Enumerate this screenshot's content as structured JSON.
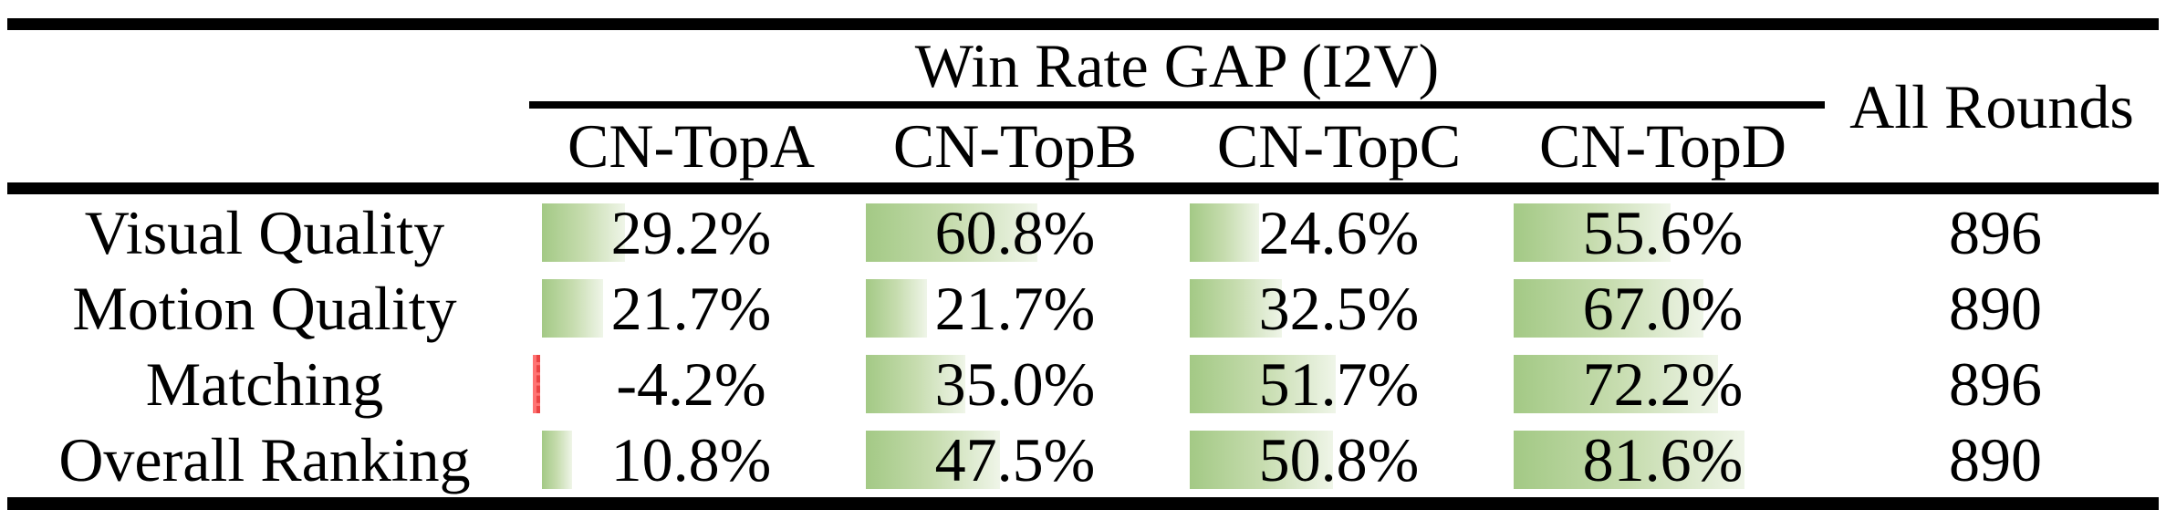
{
  "table": {
    "group_header": "Win Rate GAP (I2V)",
    "all_rounds_header": "All Rounds",
    "metric_columns": [
      "CN-TopA",
      "CN-TopB",
      "CN-TopC",
      "CN-TopD"
    ],
    "rows": [
      {
        "label": "Visual Quality",
        "cells": [
          {
            "value": 29.2,
            "text": "29.2%"
          },
          {
            "value": 60.8,
            "text": "60.8%"
          },
          {
            "value": 24.6,
            "text": "24.6%"
          },
          {
            "value": 55.6,
            "text": "55.6%"
          }
        ],
        "all_rounds": "896"
      },
      {
        "label": "Motion Quality",
        "cells": [
          {
            "value": 21.7,
            "text": "21.7%"
          },
          {
            "value": 21.7,
            "text": "21.7%"
          },
          {
            "value": 32.5,
            "text": "32.5%"
          },
          {
            "value": 67.0,
            "text": "67.0%"
          }
        ],
        "all_rounds": "890"
      },
      {
        "label": "Matching",
        "cells": [
          {
            "value": -4.2,
            "text": "-4.2%"
          },
          {
            "value": 35.0,
            "text": "35.0%"
          },
          {
            "value": 51.7,
            "text": "51.7%"
          },
          {
            "value": 72.2,
            "text": "72.2%"
          }
        ],
        "all_rounds": "896"
      },
      {
        "label": "Overall Ranking",
        "cells": [
          {
            "value": 10.8,
            "text": "10.8%"
          },
          {
            "value": 47.5,
            "text": "47.5%"
          },
          {
            "value": 50.8,
            "text": "50.8%"
          },
          {
            "value": 81.6,
            "text": "81.6%"
          }
        ],
        "all_rounds": "890"
      }
    ],
    "colors": {
      "positive_bar_start": "#a3c985",
      "positive_bar_mid": "#c6dcae",
      "positive_bar_end": "#eff5e8",
      "negative_bar": "#ff7373",
      "negative_bar_accent": "#ea4343",
      "rule": "#000000",
      "text": "#000000"
    }
  },
  "chart_data": {
    "type": "table",
    "title": "Win Rate GAP (I2V)",
    "columns": [
      "CN-TopA",
      "CN-TopB",
      "CN-TopC",
      "CN-TopD",
      "All Rounds"
    ],
    "row_labels": [
      "Visual Quality",
      "Motion Quality",
      "Matching",
      "Overall Ranking"
    ],
    "win_rate_gap_percent": {
      "Visual Quality": [
        29.2,
        60.8,
        24.6,
        55.6
      ],
      "Motion Quality": [
        21.7,
        21.7,
        32.5,
        67.0
      ],
      "Matching": [
        -4.2,
        35.0,
        51.7,
        72.2
      ],
      "Overall Ranking": [
        10.8,
        47.5,
        50.8,
        81.6
      ]
    },
    "all_rounds": [
      896,
      890,
      896,
      890
    ],
    "bar_style": "in-cell horizontal data bars: green left-to-white gradient for positive values, thin red sliver for negative values, bar length proportional to percentage"
  }
}
